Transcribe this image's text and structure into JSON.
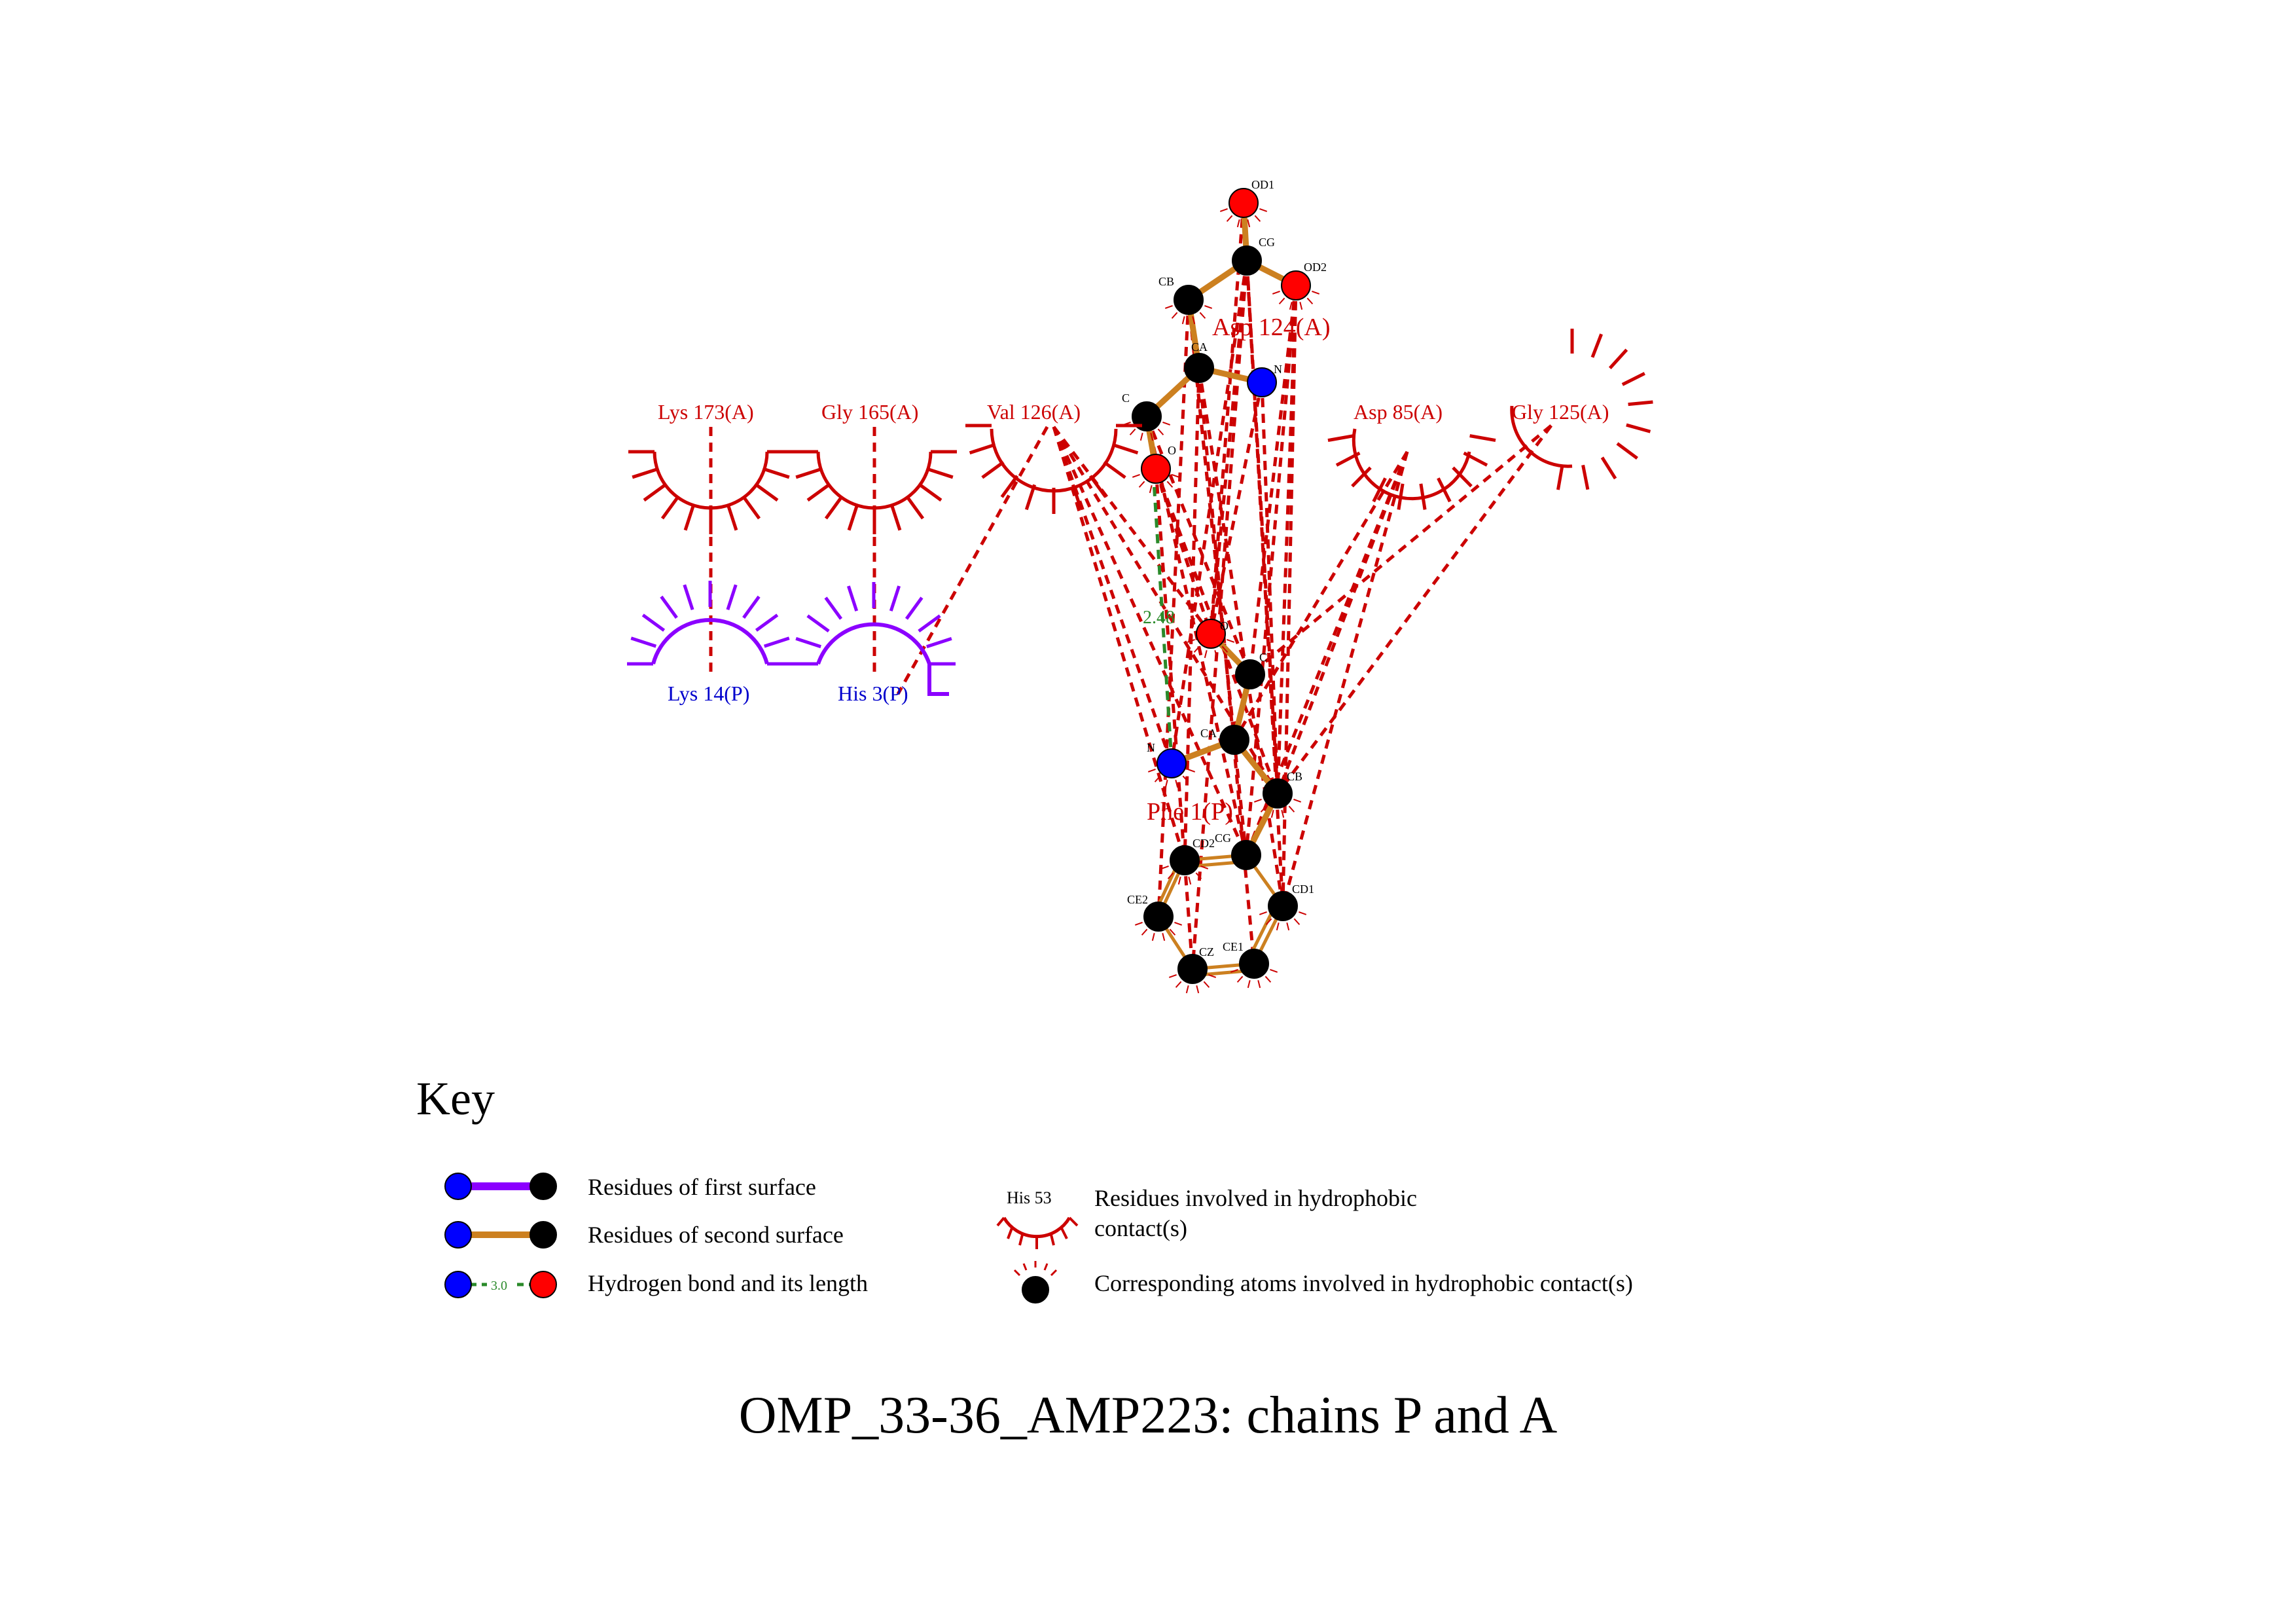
{
  "diagram": {
    "title": "OMP_33-36_AMP223: chains P and A",
    "ligand_a": {
      "name": "Asp 124(A)",
      "atoms": [
        "OD1",
        "CG",
        "OD2",
        "CB",
        "CA",
        "N",
        "C",
        "O"
      ]
    },
    "ligand_p": {
      "name": "Phe 1(P)",
      "atoms": [
        "O",
        "C",
        "CA",
        "N",
        "CB",
        "CG",
        "CD2",
        "CD1",
        "CE2",
        "CE1",
        "CZ"
      ]
    },
    "hbond": {
      "length": "2.48"
    },
    "hydrophobic_a": [
      "Lys 173(A)",
      "Gly 165(A)",
      "Val 126(A)",
      "Asp 85(A)",
      "Gly 125(A)"
    ],
    "hydrophobic_p": [
      "Lys 14(P)",
      "His 3(P)"
    ],
    "colors": {
      "first_surface": "#8b00ff",
      "second_surface": "#cc8020",
      "hbond": "#2a8a2a",
      "hydrophobic": "#cc0000",
      "nitrogen": "#0000ff",
      "oxygen": "#ff0000",
      "carbon": "#000000"
    }
  },
  "key": {
    "title": "Key",
    "first_surface": "Residues of first surface",
    "second_surface": "Residues of second surface",
    "hbond": "Hydrogen bond and its length",
    "hbond_sample": "3.0",
    "hydrophobic_sample": "His 53",
    "hydrophobic_line1": "Residues involved in hydrophobic",
    "hydrophobic_line2": "contact(s)",
    "atoms_contact": "Corresponding atoms involved in hydrophobic contact(s)"
  }
}
